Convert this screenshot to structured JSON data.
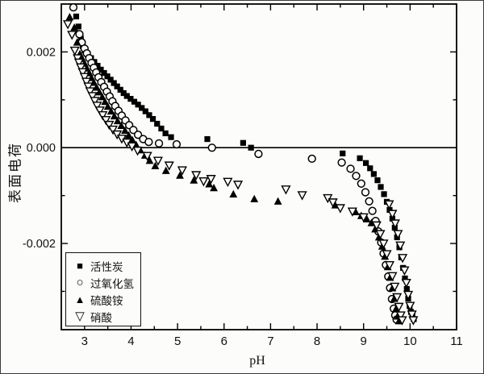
{
  "chart_data": {
    "type": "scatter",
    "title": "",
    "xlabel": "pH",
    "ylabel": "表面电荷",
    "xlim": [
      2.5,
      11
    ],
    "ylim": [
      -0.0038,
      0.003
    ],
    "grid": false,
    "zero_line": true,
    "legend_position": "lower-left",
    "x_ticks": {
      "major": [
        3,
        4,
        5,
        6,
        7,
        8,
        9,
        10,
        11
      ],
      "labels": [
        "3",
        "4",
        "5",
        "6",
        "7",
        "8",
        "9",
        "10",
        "11"
      ],
      "minor": [
        3.5,
        4.5,
        5.5,
        6.5,
        7.5,
        8.5,
        9.5,
        10.5
      ]
    },
    "y_ticks": {
      "major": [
        0.002,
        0,
        -0.002
      ],
      "labels": [
        "0.002",
        "0.000",
        "-0.002"
      ],
      "minor": [
        0.001,
        -0.001,
        -0.003
      ]
    },
    "series": [
      {
        "name": "活性炭",
        "marker": "square-filled",
        "glyph": "■",
        "color": "#000000",
        "points": [
          [
            2.82,
            0.00274
          ],
          [
            2.87,
            0.00253
          ],
          [
            2.92,
            0.00228
          ],
          [
            2.96,
            0.00212
          ],
          [
            3.0,
            0.00203
          ],
          [
            3.07,
            0.00195
          ],
          [
            3.14,
            0.00187
          ],
          [
            3.21,
            0.00179
          ],
          [
            3.28,
            0.00171
          ],
          [
            3.35,
            0.00163
          ],
          [
            3.42,
            0.00156
          ],
          [
            3.49,
            0.00149
          ],
          [
            3.56,
            0.00142
          ],
          [
            3.63,
            0.00135
          ],
          [
            3.7,
            0.00128
          ],
          [
            3.77,
            0.00121
          ],
          [
            3.84,
            0.00114
          ],
          [
            3.91,
            0.00108
          ],
          [
            3.99,
            0.00102
          ],
          [
            4.07,
            0.00096
          ],
          [
            4.15,
            0.0009
          ],
          [
            4.23,
            0.00083
          ],
          [
            4.31,
            0.00076
          ],
          [
            4.39,
            0.00068
          ],
          [
            4.47,
            0.0006
          ],
          [
            4.56,
            0.0005
          ],
          [
            4.65,
            0.0004
          ],
          [
            4.74,
            0.0003
          ],
          [
            4.86,
            0.00022
          ],
          [
            5.64,
            0.00018
          ],
          [
            6.41,
            0.0001
          ],
          [
            6.58,
            0.0
          ],
          [
            8.55,
            -0.00012
          ],
          [
            8.92,
            -0.00022
          ],
          [
            9.05,
            -0.00032
          ],
          [
            9.14,
            -0.00043
          ],
          [
            9.22,
            -0.00055
          ],
          [
            9.3,
            -0.00068
          ],
          [
            9.37,
            -0.00082
          ],
          [
            9.44,
            -0.00097
          ],
          [
            9.5,
            -0.00113
          ],
          [
            9.56,
            -0.0013
          ],
          [
            9.62,
            -0.00148
          ],
          [
            9.67,
            -0.00167
          ],
          [
            9.72,
            -0.00187
          ],
          [
            9.77,
            -0.00208
          ],
          [
            9.81,
            -0.00229
          ],
          [
            9.85,
            -0.00251
          ],
          [
            9.89,
            -0.00273
          ],
          [
            9.93,
            -0.00295
          ],
          [
            9.96,
            -0.00315
          ],
          [
            9.99,
            -0.00331
          ],
          [
            10.02,
            -0.00343
          ],
          [
            10.05,
            -0.00352
          ],
          [
            10.08,
            -0.00358
          ]
        ]
      },
      {
        "name": "过氧化氢",
        "marker": "circle-open",
        "glyph": "○",
        "color": "#000000",
        "points": [
          [
            2.76,
            0.00293
          ],
          [
            2.89,
            0.00237
          ],
          [
            2.94,
            0.0022
          ],
          [
            3.0,
            0.00207
          ],
          [
            3.05,
            0.00197
          ],
          [
            3.1,
            0.00187
          ],
          [
            3.15,
            0.00177
          ],
          [
            3.2,
            0.00167
          ],
          [
            3.25,
            0.00157
          ],
          [
            3.3,
            0.00147
          ],
          [
            3.36,
            0.00137
          ],
          [
            3.42,
            0.00127
          ],
          [
            3.48,
            0.00117
          ],
          [
            3.54,
            0.00107
          ],
          [
            3.6,
            0.00097
          ],
          [
            3.66,
            0.00087
          ],
          [
            3.73,
            0.00077
          ],
          [
            3.8,
            0.00067
          ],
          [
            3.88,
            0.00057
          ],
          [
            3.96,
            0.00047
          ],
          [
            4.05,
            0.00037
          ],
          [
            4.15,
            0.00027
          ],
          [
            4.26,
            0.00018
          ],
          [
            4.38,
            0.00012
          ],
          [
            4.6,
            9e-05
          ],
          [
            4.98,
            7e-05
          ],
          [
            5.74,
            0.0
          ],
          [
            6.74,
            -0.00013
          ],
          [
            7.89,
            -0.00023
          ],
          [
            8.53,
            -0.00031
          ],
          [
            8.72,
            -0.00044
          ],
          [
            8.84,
            -0.00059
          ],
          [
            8.95,
            -0.00075
          ],
          [
            9.04,
            -0.00093
          ],
          [
            9.12,
            -0.00112
          ],
          [
            9.19,
            -0.00132
          ],
          [
            9.26,
            -0.00153
          ],
          [
            9.32,
            -0.00175
          ],
          [
            9.38,
            -0.00198
          ],
          [
            9.43,
            -0.00221
          ],
          [
            9.48,
            -0.00245
          ],
          [
            9.53,
            -0.00269
          ],
          [
            9.57,
            -0.00293
          ],
          [
            9.61,
            -0.00316
          ],
          [
            9.65,
            -0.00336
          ],
          [
            9.68,
            -0.0035
          ],
          [
            9.71,
            -0.00359
          ]
        ]
      },
      {
        "name": "硫酸铵",
        "marker": "triangle-up-filled",
        "glyph": "▲",
        "color": "#000000",
        "points": [
          [
            2.68,
            0.00273
          ],
          [
            2.78,
            0.00251
          ],
          [
            2.84,
            0.0022
          ],
          [
            2.9,
            0.00196
          ],
          [
            2.95,
            0.00186
          ],
          [
            3.0,
            0.00176
          ],
          [
            3.05,
            0.00166
          ],
          [
            3.1,
            0.00156
          ],
          [
            3.15,
            0.00146
          ],
          [
            3.2,
            0.00136
          ],
          [
            3.26,
            0.00126
          ],
          [
            3.32,
            0.00116
          ],
          [
            3.38,
            0.00106
          ],
          [
            3.44,
            0.00096
          ],
          [
            3.5,
            0.00086
          ],
          [
            3.57,
            0.00076
          ],
          [
            3.64,
            0.00066
          ],
          [
            3.71,
            0.00056
          ],
          [
            3.79,
            0.00046
          ],
          [
            3.87,
            0.00036
          ],
          [
            3.95,
            0.00026
          ],
          [
            4.03,
            0.00016
          ],
          [
            4.11,
            6e-05
          ],
          [
            4.2,
            -5e-05
          ],
          [
            4.3,
            -0.00016
          ],
          [
            4.4,
            -0.00027
          ],
          [
            4.52,
            -0.00038
          ],
          [
            4.75,
            -0.00048
          ],
          [
            5.05,
            -0.00058
          ],
          [
            5.35,
            -0.00068
          ],
          [
            5.68,
            -0.00076
          ],
          [
            5.78,
            -0.00084
          ],
          [
            6.2,
            -0.00097
          ],
          [
            6.65,
            -0.00107
          ],
          [
            7.16,
            -0.00112
          ],
          [
            8.39,
            -0.0012
          ],
          [
            8.83,
            -0.00134
          ],
          [
            8.95,
            -0.00142
          ],
          [
            9.07,
            -0.00149
          ],
          [
            9.17,
            -0.00157
          ],
          [
            9.25,
            -0.0017
          ],
          [
            9.33,
            -0.00187
          ],
          [
            9.4,
            -0.00206
          ],
          [
            9.46,
            -0.00227
          ],
          [
            9.52,
            -0.00249
          ],
          [
            9.57,
            -0.00271
          ],
          [
            9.62,
            -0.00293
          ],
          [
            9.66,
            -0.00315
          ],
          [
            9.7,
            -0.00336
          ],
          [
            9.73,
            -0.00352
          ],
          [
            9.76,
            -0.00362
          ]
        ]
      },
      {
        "name": "硝酸",
        "marker": "triangle-down-open",
        "glyph": "▽",
        "color": "#000000",
        "points": [
          [
            2.64,
            0.00258
          ],
          [
            2.73,
            0.00236
          ],
          [
            2.79,
            0.00203
          ],
          [
            2.85,
            0.00187
          ],
          [
            2.88,
            0.00178
          ],
          [
            2.92,
            0.00168
          ],
          [
            2.96,
            0.00158
          ],
          [
            3.0,
            0.00148
          ],
          [
            3.04,
            0.00138
          ],
          [
            3.08,
            0.00128
          ],
          [
            3.12,
            0.00118
          ],
          [
            3.17,
            0.00108
          ],
          [
            3.22,
            0.00098
          ],
          [
            3.27,
            0.00088
          ],
          [
            3.33,
            0.00078
          ],
          [
            3.39,
            0.00068
          ],
          [
            3.46,
            0.00058
          ],
          [
            3.53,
            0.00048
          ],
          [
            3.61,
            0.00038
          ],
          [
            3.7,
            0.00028
          ],
          [
            3.8,
            0.00019
          ],
          [
            3.91,
            0.00011
          ],
          [
            4.02,
            3e-05
          ],
          [
            4.14,
            -6e-05
          ],
          [
            4.35,
            -0.00017
          ],
          [
            4.58,
            -0.00027
          ],
          [
            4.82,
            -0.00037
          ],
          [
            5.1,
            -0.00047
          ],
          [
            5.4,
            -0.00057
          ],
          [
            5.56,
            -0.0007
          ],
          [
            5.72,
            -0.00065
          ],
          [
            6.08,
            -0.00071
          ],
          [
            6.3,
            -0.00077
          ],
          [
            7.33,
            -0.00087
          ],
          [
            7.68,
            -0.00099
          ],
          [
            8.23,
            -0.00105
          ],
          [
            8.34,
            -0.00114
          ],
          [
            8.5,
            -0.00126
          ],
          [
            8.76,
            -0.00133
          ],
          [
            9.0,
            -0.00145
          ],
          [
            9.28,
            -0.00162
          ],
          [
            9.36,
            -0.0018
          ],
          [
            9.43,
            -0.002
          ],
          [
            9.5,
            -0.00222
          ],
          [
            9.56,
            -0.00245
          ],
          [
            9.62,
            -0.00268
          ],
          [
            9.67,
            -0.0029
          ],
          [
            9.72,
            -0.00312
          ],
          [
            9.76,
            -0.00332
          ],
          [
            9.8,
            -0.0035
          ],
          [
            9.83,
            -0.0036
          ],
          [
            9.55,
            -0.00118
          ],
          [
            9.62,
            -0.00138
          ],
          [
            9.68,
            -0.00158
          ],
          [
            9.74,
            -0.0018
          ],
          [
            9.79,
            -0.00204
          ],
          [
            9.84,
            -0.0023
          ],
          [
            9.88,
            -0.00256
          ],
          [
            9.92,
            -0.00282
          ],
          [
            9.96,
            -0.00307
          ],
          [
            10.0,
            -0.0033
          ],
          [
            10.04,
            -0.00348
          ],
          [
            10.07,
            -0.0036
          ]
        ]
      }
    ]
  }
}
